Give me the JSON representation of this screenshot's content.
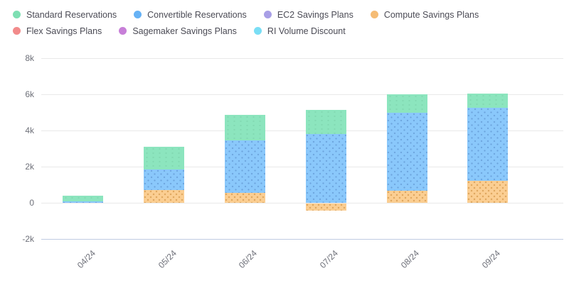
{
  "legend": {
    "items": [
      {
        "label": "Standard Reservations",
        "color": "#7edfb3"
      },
      {
        "label": "Convertible Reservations",
        "color": "#66b2f5"
      },
      {
        "label": "EC2 Savings Plans",
        "color": "#a89fe6"
      },
      {
        "label": "Compute Savings Plans",
        "color": "#f5bc75"
      },
      {
        "label": "Flex Savings Plans",
        "color": "#f28b8b"
      },
      {
        "label": "Sagemaker Savings Plans",
        "color": "#c77fd8"
      },
      {
        "label": "RI Volume Discount",
        "color": "#7adef5"
      }
    ]
  },
  "chart_data": {
    "type": "bar",
    "stacked": true,
    "title": "",
    "xlabel": "",
    "ylabel": "",
    "legend_position": "top",
    "grid": true,
    "categories": [
      "04/24",
      "05/24",
      "06/24",
      "07/24",
      "08/24",
      "09/24"
    ],
    "series": [
      {
        "name": "Standard Reservations",
        "color": "#8ce5be",
        "values": [
          300,
          1250,
          1400,
          1350,
          1000,
          800
        ]
      },
      {
        "name": "Convertible Reservations",
        "color": "#8ac8fb",
        "values": [
          90,
          1150,
          2900,
          3800,
          4350,
          4050
        ]
      },
      {
        "name": "EC2 Savings Plans",
        "color": "#a89fe6",
        "values": [
          0,
          0,
          0,
          0,
          0,
          0
        ]
      },
      {
        "name": "Compute Savings Plans",
        "color": "#fbce92",
        "values": [
          0,
          700,
          550,
          -400,
          650,
          1200
        ]
      },
      {
        "name": "Flex Savings Plans",
        "color": "#f28b8b",
        "values": [
          0,
          0,
          0,
          0,
          0,
          0
        ]
      },
      {
        "name": "Sagemaker Savings Plans",
        "color": "#c77fd8",
        "values": [
          0,
          0,
          0,
          0,
          0,
          0
        ]
      },
      {
        "name": "RI Volume Discount",
        "color": "#7adef5",
        "values": [
          0,
          0,
          0,
          0,
          0,
          0
        ]
      }
    ],
    "stack_order_bottom_to_top": [
      "Compute Savings Plans",
      "Convertible Reservations",
      "Standard Reservations"
    ],
    "ylim": [
      -2000,
      8000
    ],
    "yticks": [
      {
        "label": "8k",
        "value": 8000
      },
      {
        "label": "6k",
        "value": 6000
      },
      {
        "label": "4k",
        "value": 4000
      },
      {
        "label": "2k",
        "value": 2000
      },
      {
        "label": "0",
        "value": 0
      },
      {
        "label": "-2k",
        "value": -2000
      }
    ],
    "colors": {
      "grid_line": "#e9e9e9",
      "axis_line": "#bfcbe3",
      "tick_text": "#6e7079",
      "legend_text": "#4b4b55"
    }
  }
}
